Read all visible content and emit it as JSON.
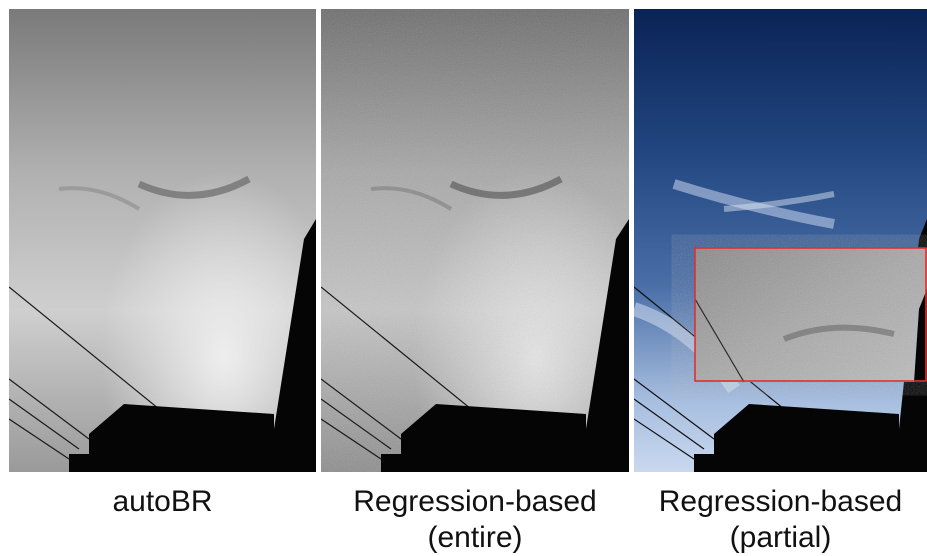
{
  "panels": [
    {
      "caption_lines": [
        "autoBR"
      ]
    },
    {
      "caption_lines": [
        "Regression-based",
        "(entire)"
      ]
    },
    {
      "caption_lines": [
        "Regression-based",
        "(partial)"
      ]
    }
  ],
  "colors": {
    "inset_border": "#e03030",
    "silhouette": "#050505",
    "sky_top": "#0a2355",
    "sky_bottom": "#c9d8ee"
  }
}
